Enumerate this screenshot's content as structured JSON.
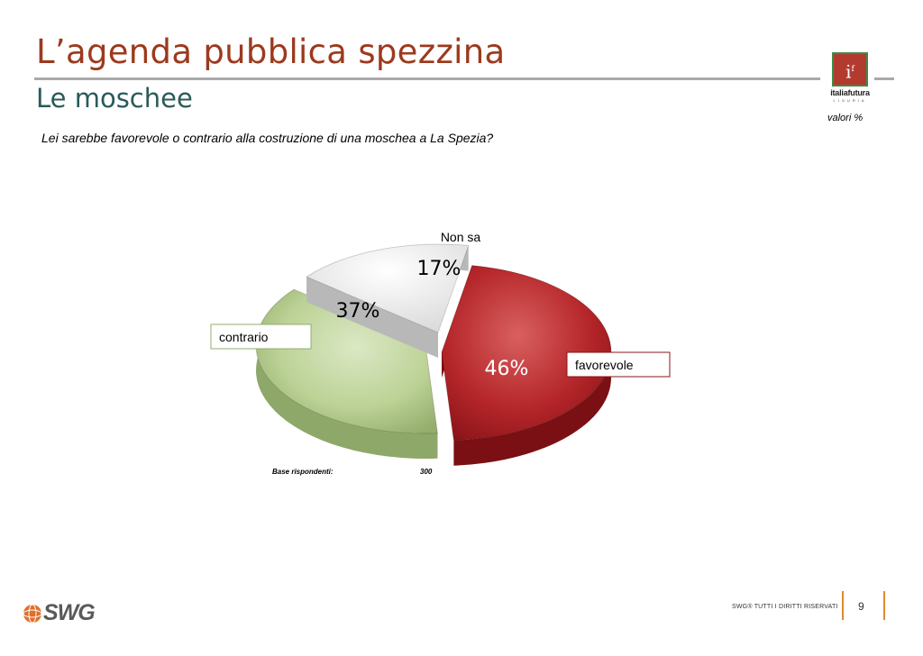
{
  "header": {
    "title": "L’agenda pubblica spezzina",
    "subtitle": "Le moschee",
    "question": "Lei sarebbe favorevole o contrario alla costruzione di una moschea a La Spezia?",
    "units_note": "valori %"
  },
  "logo": {
    "mark": "i",
    "mark_sup": "f",
    "name": "italiafutura",
    "region": "LIGURIA"
  },
  "chart_data": {
    "type": "pie",
    "title": "",
    "slices": [
      {
        "label": "favorevole",
        "value": 46,
        "display": "46%",
        "color": "#b5262a"
      },
      {
        "label": "contrario",
        "value": 37,
        "display": "37%",
        "color": "#bcd296"
      },
      {
        "label": "Non sa",
        "value": 17,
        "display": "17%",
        "color": "#efefef"
      }
    ]
  },
  "base": {
    "label": "Base rispondenti:",
    "value": "300"
  },
  "footer": {
    "brand": "SWG",
    "rights": "SWG® TUTTI I DIRITTI RISERVATI",
    "page": "9"
  }
}
